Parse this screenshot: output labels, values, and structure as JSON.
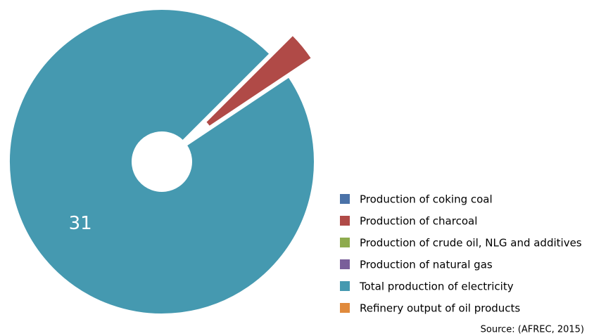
{
  "chart_data": {
    "type": "donut",
    "categories": [
      "Production of coking coal",
      "Production of charcoal",
      "Production of crude oil, NLG and additives",
      "Production of natural gas",
      "Total production of electricity",
      "Refinery output of oil products"
    ],
    "values": [
      0,
      1,
      0,
      0,
      31,
      0
    ],
    "value_labels": [
      null,
      null,
      null,
      null,
      "31",
      null
    ],
    "colors": [
      "#4a72a8",
      "#b04a47",
      "#8eab4e",
      "#7a5e9a",
      "#4599b0",
      "#e08a3c"
    ],
    "exploded_index": 1,
    "legend": "right",
    "source": "Source: (AFREC, 2015)"
  }
}
